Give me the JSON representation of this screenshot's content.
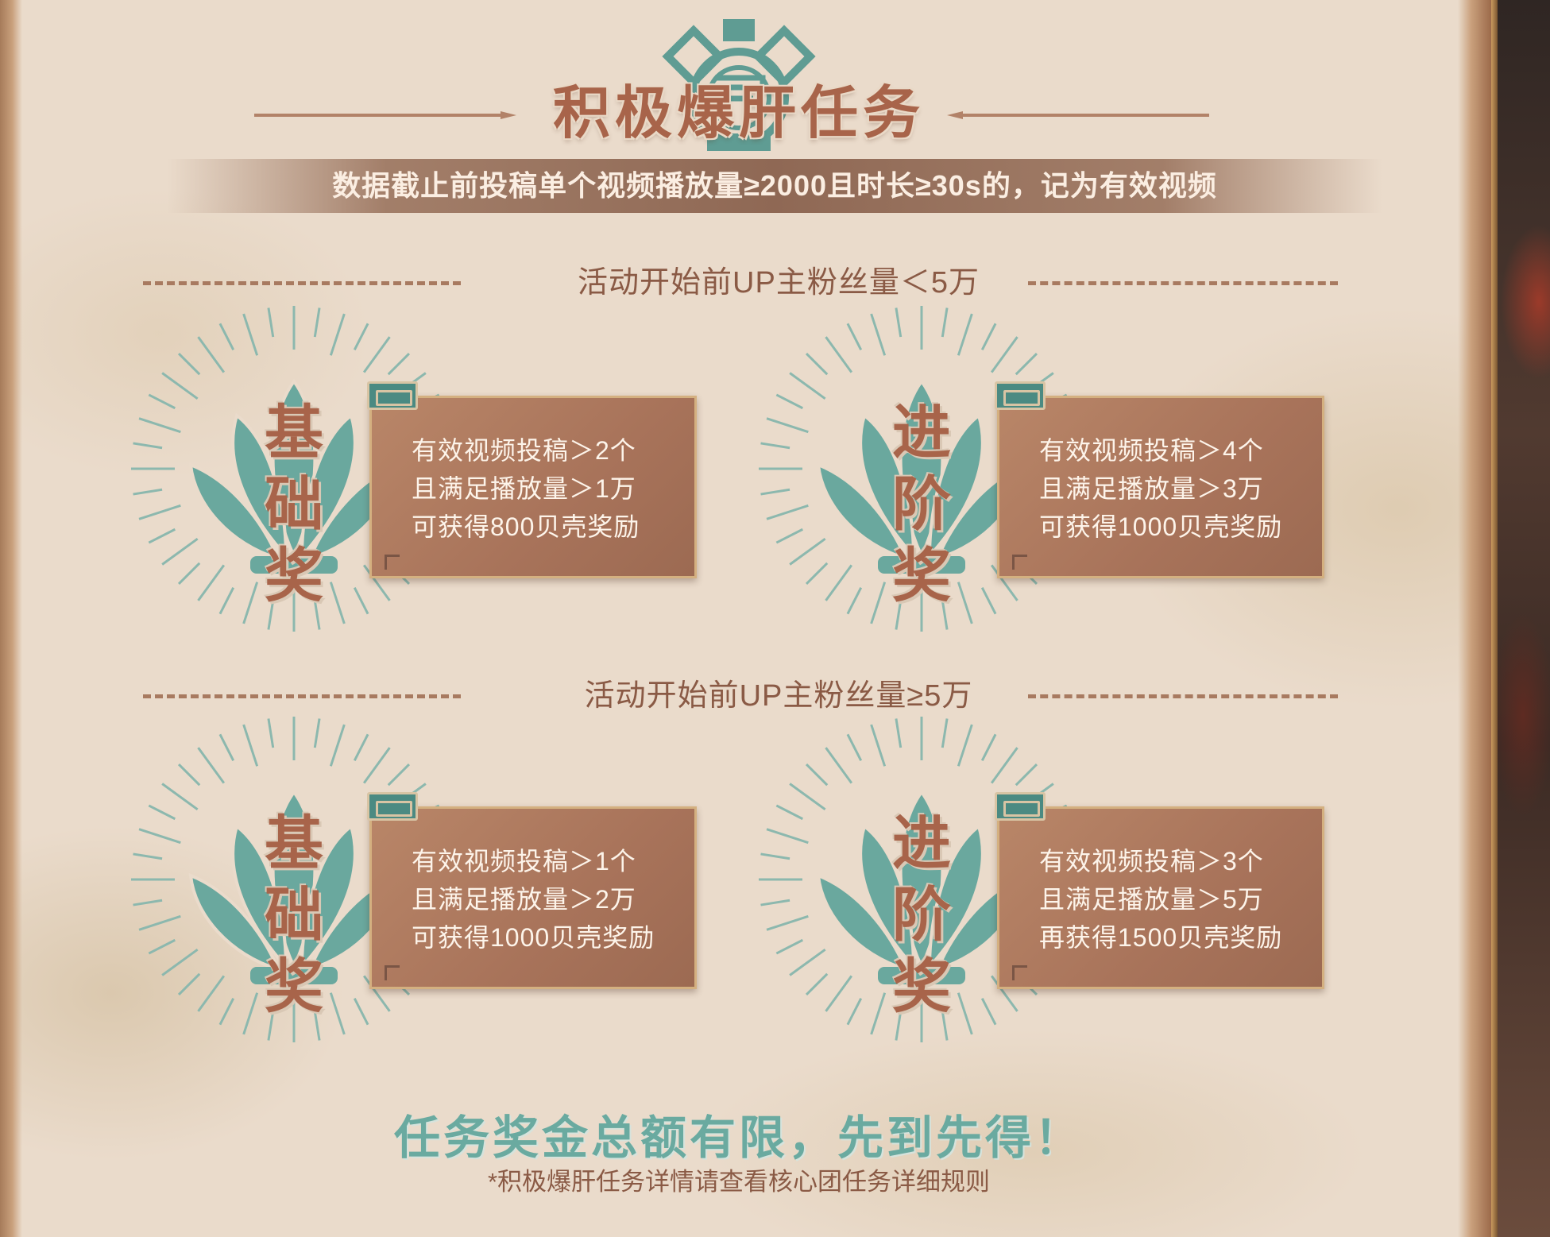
{
  "header": {
    "title": "积极爆肝任务",
    "subtitle": "数据截止前投稿单个视频播放量≥2000且时长≥30s的，记为有效视频"
  },
  "sections": [
    {
      "title": "活动开始前UP主粉丝量＜5万",
      "rewards": [
        {
          "label_chars": [
            "基",
            "础",
            "奖"
          ],
          "lines": [
            "有效视频投稿＞2个",
            "且满足播放量＞1万",
            "可获得800贝壳奖励"
          ]
        },
        {
          "label_chars": [
            "进",
            "阶",
            "奖"
          ],
          "lines": [
            "有效视频投稿＞4个",
            "且满足播放量＞3万",
            "可获得1000贝壳奖励"
          ]
        }
      ]
    },
    {
      "title": "活动开始前UP主粉丝量≥5万",
      "rewards": [
        {
          "label_chars": [
            "基",
            "础",
            "奖"
          ],
          "lines": [
            "有效视频投稿＞1个",
            "且满足播放量＞2万",
            "可获得1000贝壳奖励"
          ]
        },
        {
          "label_chars": [
            "进",
            "阶",
            "奖"
          ],
          "lines": [
            "有效视频投稿＞3个",
            "且满足播放量＞5万",
            "再获得1500贝壳奖励"
          ]
        }
      ]
    }
  ],
  "footer": {
    "slogan": "任务奖金总额有限，先到先得！",
    "note": "*积极爆肝任务详情请查看核心团任务详细规则"
  },
  "colors": {
    "parchment": "#eadbcb",
    "title_brown": "#a8644a",
    "teal": "#6aaaa0",
    "card": "#a8735a",
    "tab_teal": "#4b8a82"
  },
  "icons": [
    "emblem-icon",
    "shell-icon",
    "sunburst-icon",
    "scroll-tab-icon",
    "arrow-icon"
  ]
}
